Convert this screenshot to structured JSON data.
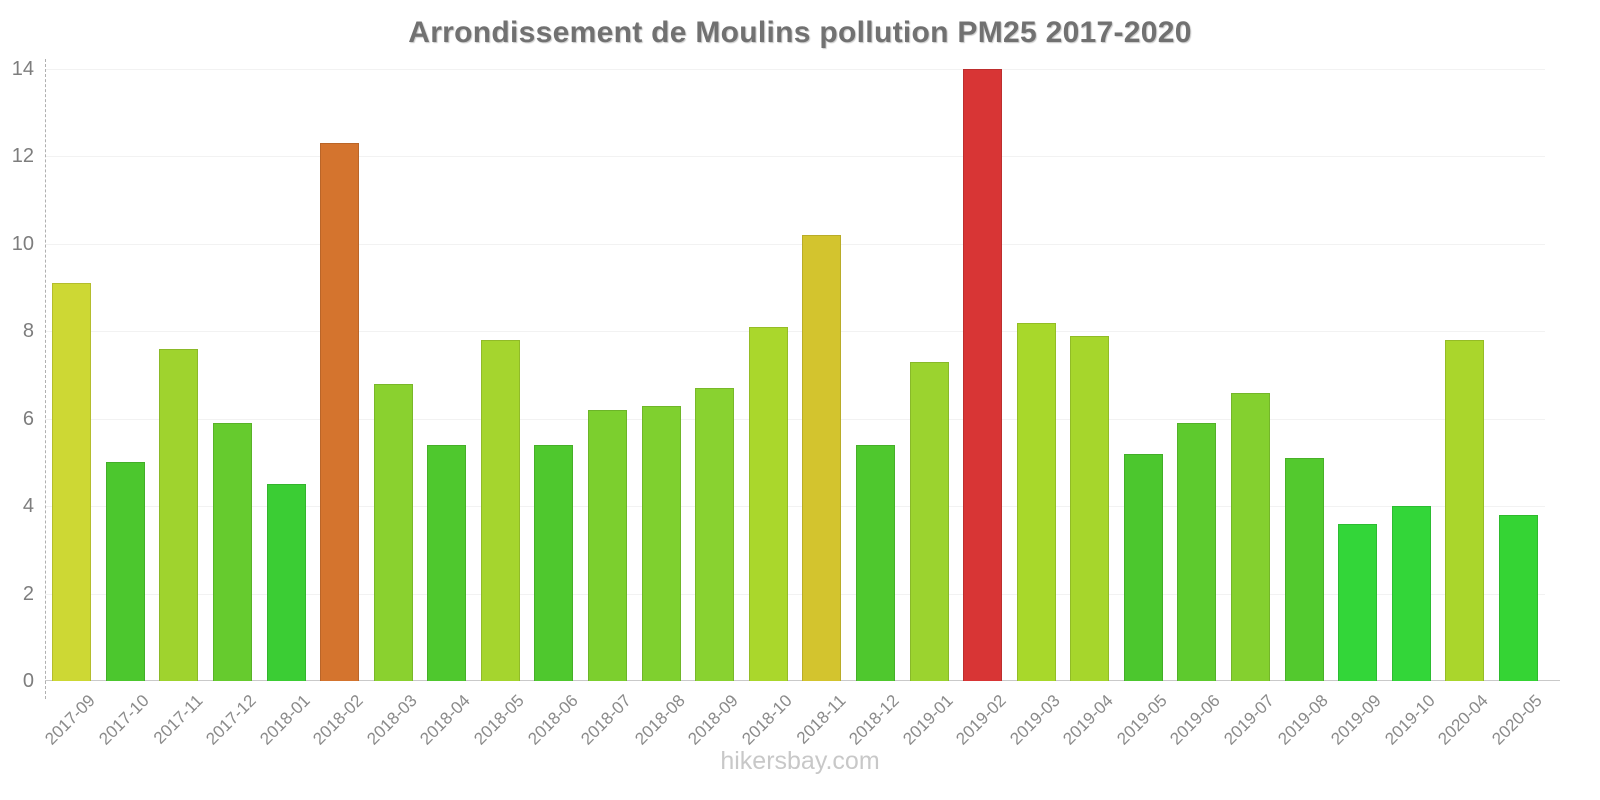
{
  "page": {
    "title": "Arrondissement de Moulins pollution PM25 2017-2020",
    "watermark": "hikersbay.com"
  },
  "chart_data": {
    "type": "bar",
    "title": "Arrondissement de Moulins pollution PM25 2017-2020",
    "xlabel": "",
    "ylabel": "",
    "ylim": [
      0,
      14
    ],
    "yticks": [
      0,
      2,
      4,
      6,
      8,
      10,
      12,
      14
    ],
    "grid": true,
    "legend": "none",
    "categories": [
      "2017-09",
      "2017-10",
      "2017-11",
      "2017-12",
      "2018-01",
      "2018-02",
      "2018-03",
      "2018-04",
      "2018-05",
      "2018-06",
      "2018-07",
      "2018-08",
      "2018-09",
      "2018-10",
      "2018-11",
      "2018-12",
      "2019-01",
      "2019-02",
      "2019-03",
      "2019-04",
      "2019-05",
      "2019-06",
      "2019-07",
      "2019-08",
      "2019-09",
      "2019-10",
      "2020-04",
      "2020-05"
    ],
    "values": [
      9.1,
      5.0,
      7.6,
      5.9,
      4.5,
      12.3,
      6.8,
      5.4,
      7.8,
      5.4,
      6.2,
      6.3,
      6.7,
      8.1,
      10.2,
      5.4,
      7.3,
      14,
      8.2,
      7.9,
      5.2,
      5.9,
      6.6,
      5.1,
      3.6,
      4.0,
      7.8,
      3.8
    ],
    "bar_colors": [
      "#cdd834",
      "#4cc72e",
      "#9fd32e",
      "#66cb2e",
      "#3bcd34",
      "#d4742e",
      "#8ad12f",
      "#4fc82e",
      "#a5d52e",
      "#4fc82e",
      "#7ccf2e",
      "#7fd02f",
      "#89d230",
      "#aad72c",
      "#d3c42e",
      "#4fc82e",
      "#9bd32f",
      "#d83535",
      "#a8d82b",
      "#a6d62c",
      "#4cc72e",
      "#5eca2e",
      "#84d02f",
      "#53c92e",
      "#33d639",
      "#33d639",
      "#aad62c",
      "#35d434"
    ]
  },
  "colors": {
    "title_text": "#717171",
    "y_label_text": "#7d7d7d",
    "x_label_text": "#8a8a8a",
    "watermark_text": "#c8c8c8",
    "gridline": "#f2f2f2",
    "x_axis_line": "#c9c9c9",
    "y_axis_line": "#b0b0b0",
    "background": "#ffffff"
  }
}
